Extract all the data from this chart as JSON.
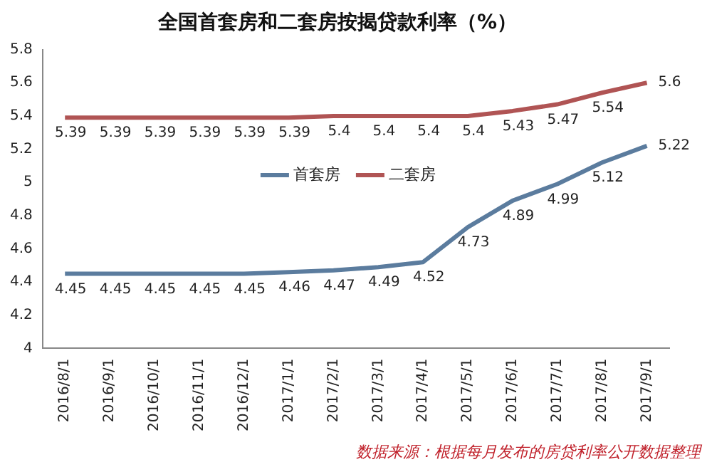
{
  "chart_data": {
    "type": "line",
    "title": "全国首套房和二套房按揭贷款利率（%）",
    "categories": [
      "2016/8/1",
      "2016/9/1",
      "2016/10/1",
      "2016/11/1",
      "2016/12/1",
      "2017/1/1",
      "2017/2/1",
      "2017/3/1",
      "2017/4/1",
      "2017/5/1",
      "2017/6/1",
      "2017/7/1",
      "2017/8/1",
      "2017/9/1"
    ],
    "series": [
      {
        "name": "首套房",
        "color": "#5b7c9e",
        "values": [
          4.45,
          4.45,
          4.45,
          4.45,
          4.45,
          4.46,
          4.47,
          4.49,
          4.52,
          4.73,
          4.89,
          4.99,
          5.12,
          5.22
        ]
      },
      {
        "name": "二套房",
        "color": "#b05454",
        "values": [
          5.39,
          5.39,
          5.39,
          5.39,
          5.39,
          5.39,
          5.4,
          5.4,
          5.4,
          5.4,
          5.43,
          5.47,
          5.54,
          5.6
        ]
      }
    ],
    "ylim": [
      4,
      5.8
    ],
    "yticks": [
      4,
      4.2,
      4.4,
      4.6,
      4.8,
      5,
      5.2,
      5.4,
      5.6,
      5.8
    ],
    "grid": false,
    "legend": "center",
    "marker": "none",
    "line_style": "solid",
    "data_labels": true,
    "annotations": [
      "数据来源：根据每月发布的房贷利率公开数据整理"
    ]
  }
}
